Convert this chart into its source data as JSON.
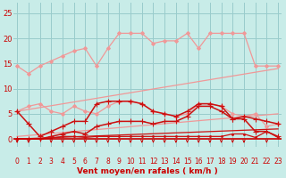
{
  "bg_color": "#c8ece8",
  "grid_color": "#99cccc",
  "xlabel": "Vent moyen/en rafales ( km/h )",
  "xlabel_color": "#cc0000",
  "tick_color": "#cc0000",
  "ytick_vals": [
    0,
    5,
    10,
    15,
    20,
    25
  ],
  "xtick_vals": [
    0,
    1,
    2,
    3,
    4,
    5,
    6,
    7,
    8,
    9,
    10,
    11,
    12,
    13,
    14,
    15,
    16,
    17,
    18,
    19,
    20,
    21,
    22,
    23
  ],
  "xlim": [
    -0.3,
    23.3
  ],
  "ylim": [
    -1.5,
    27
  ],
  "series": [
    {
      "x": [
        0,
        23
      ],
      "y": [
        5.5,
        14.0
      ],
      "color": "#f09898",
      "lw": 0.9,
      "marker": null,
      "ms": null,
      "ls": "-"
    },
    {
      "x": [
        0,
        23
      ],
      "y": [
        0.5,
        5.0
      ],
      "color": "#f09898",
      "lw": 0.9,
      "marker": null,
      "ms": null,
      "ls": "-"
    },
    {
      "x": [
        0,
        1,
        2,
        3,
        4,
        5,
        6,
        7,
        8,
        9,
        10,
        11,
        12,
        13,
        14,
        15,
        16,
        17,
        18,
        19,
        20,
        21,
        22,
        23
      ],
      "y": [
        14.5,
        13.0,
        14.5,
        15.5,
        16.5,
        17.5,
        18.0,
        14.5,
        18.0,
        21.0,
        21.0,
        21.0,
        19.0,
        19.5,
        19.5,
        21.0,
        18.0,
        21.0,
        21.0,
        21.0,
        21.0,
        14.5,
        14.5,
        14.5
      ],
      "color": "#f09898",
      "lw": 0.9,
      "marker": "D",
      "ms": 2.0,
      "ls": "-"
    },
    {
      "x": [
        0,
        1,
        2,
        3,
        4,
        5,
        6,
        7,
        8,
        9,
        10,
        11,
        12,
        13,
        14,
        15,
        16,
        17,
        18,
        19,
        20,
        21,
        22,
        23
      ],
      "y": [
        5.5,
        6.5,
        7.0,
        5.5,
        5.0,
        6.5,
        5.5,
        5.0,
        6.5,
        7.5,
        7.5,
        7.0,
        5.5,
        5.0,
        4.5,
        5.0,
        7.0,
        7.0,
        6.5,
        5.0,
        4.5,
        5.0,
        2.5,
        3.0
      ],
      "color": "#f09898",
      "lw": 0.9,
      "marker": "D",
      "ms": 2.0,
      "ls": "-"
    },
    {
      "x": [
        0,
        1,
        2,
        3,
        4,
        5,
        6,
        7,
        8,
        9,
        10,
        11,
        12,
        13,
        14,
        15,
        16,
        17,
        18,
        19,
        20,
        21,
        22,
        23
      ],
      "y": [
        5.5,
        3.0,
        0.5,
        1.5,
        2.5,
        3.5,
        3.5,
        7.0,
        7.5,
        7.5,
        7.5,
        7.0,
        5.5,
        5.0,
        4.5,
        5.5,
        7.0,
        7.0,
        6.5,
        4.0,
        4.5,
        4.0,
        3.5,
        3.0
      ],
      "color": "#cc1111",
      "lw": 1.1,
      "marker": "+",
      "ms": 4.0,
      "ls": "-"
    },
    {
      "x": [
        0,
        1,
        2,
        3,
        4,
        5,
        6,
        7,
        8,
        9,
        10,
        11,
        12,
        13,
        14,
        15,
        16,
        17,
        18,
        19,
        20,
        21,
        22,
        23
      ],
      "y": [
        0.0,
        0.0,
        0.0,
        0.5,
        1.0,
        1.5,
        1.0,
        2.5,
        3.0,
        3.5,
        3.5,
        3.5,
        3.0,
        3.5,
        3.5,
        4.5,
        6.5,
        6.5,
        5.5,
        4.0,
        4.0,
        1.5,
        1.5,
        0.5
      ],
      "color": "#cc1111",
      "lw": 1.1,
      "marker": "+",
      "ms": 4.0,
      "ls": "-"
    },
    {
      "x": [
        0,
        1,
        2,
        3,
        4,
        5,
        6,
        7,
        8,
        9,
        10,
        11,
        12,
        13,
        14,
        15,
        16,
        17,
        18,
        19,
        20,
        21,
        22,
        23
      ],
      "y": [
        0.0,
        0.0,
        0.0,
        0.2,
        0.5,
        0.5,
        0.3,
        0.5,
        0.5,
        0.5,
        0.5,
        0.5,
        0.5,
        0.5,
        0.5,
        0.5,
        0.5,
        0.5,
        0.5,
        1.0,
        1.0,
        0.3,
        1.5,
        0.3
      ],
      "color": "#cc1111",
      "lw": 0.9,
      "marker": ".",
      "ms": 2.5,
      "ls": "-"
    },
    {
      "x": [
        0,
        23
      ],
      "y": [
        0.0,
        2.0
      ],
      "color": "#cc1111",
      "lw": 0.9,
      "marker": null,
      "ms": null,
      "ls": "-"
    }
  ],
  "arrows_x": [
    0,
    1,
    3,
    4,
    5,
    6,
    7,
    8,
    9,
    10,
    11,
    12,
    13,
    14,
    15,
    16,
    17,
    18,
    19,
    20,
    22
  ],
  "arrow_color": "#cc0000",
  "axis_line_color": "#cc0000"
}
